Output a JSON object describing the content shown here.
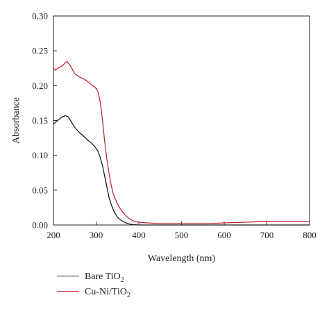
{
  "chart_data": {
    "type": "line",
    "xlabel": "Wavelength (nm)",
    "ylabel": "Absorbance",
    "xlim": [
      200,
      800
    ],
    "ylim": [
      0,
      0.3
    ],
    "x_ticks": [
      200,
      300,
      400,
      500,
      600,
      700,
      800
    ],
    "y_ticks": [
      0.0,
      0.05,
      0.1,
      0.15,
      0.2,
      0.25,
      0.3
    ],
    "y_tick_labels": [
      "0.00",
      "0.05",
      "0.10",
      "0.15",
      "0.20",
      "0.25",
      "0.30"
    ],
    "grid": false,
    "legend_position": "below",
    "series": [
      {
        "name": "Bare TiO2",
        "label_main": "Bare TiO",
        "label_sub": "2",
        "color": "#1a1a1a",
        "x": [
          200,
          210,
          220,
          228,
          235,
          240,
          250,
          260,
          270,
          280,
          290,
          300,
          305,
          310,
          315,
          320,
          325,
          330,
          335,
          340,
          345,
          350,
          360,
          370,
          380,
          390,
          400,
          450,
          500,
          600,
          700,
          800
        ],
        "y": [
          0.145,
          0.15,
          0.155,
          0.157,
          0.155,
          0.15,
          0.14,
          0.133,
          0.128,
          0.122,
          0.117,
          0.11,
          0.105,
          0.096,
          0.085,
          0.07,
          0.055,
          0.04,
          0.03,
          0.022,
          0.016,
          0.011,
          0.006,
          0.003,
          0.001,
          0.0005,
          0.0,
          0.0,
          0.0,
          0.0,
          0.0,
          0.0
        ]
      },
      {
        "name": "Cu-Ni/TiO2",
        "label_main": "Cu-Ni/TiO",
        "label_sub": "2",
        "color": "#c0282e",
        "x": [
          200,
          205,
          210,
          220,
          228,
          232,
          240,
          250,
          260,
          270,
          280,
          290,
          300,
          305,
          310,
          315,
          320,
          325,
          330,
          335,
          340,
          350,
          360,
          370,
          380,
          390,
          400,
          420,
          450,
          500,
          560,
          600,
          650,
          700,
          750,
          800
        ],
        "y": [
          0.225,
          0.222,
          0.225,
          0.228,
          0.233,
          0.235,
          0.228,
          0.217,
          0.213,
          0.21,
          0.206,
          0.201,
          0.196,
          0.19,
          0.175,
          0.15,
          0.12,
          0.095,
          0.075,
          0.058,
          0.045,
          0.03,
          0.02,
          0.013,
          0.008,
          0.005,
          0.004,
          0.003,
          0.002,
          0.002,
          0.002,
          0.003,
          0.004,
          0.005,
          0.005,
          0.005
        ]
      }
    ]
  }
}
